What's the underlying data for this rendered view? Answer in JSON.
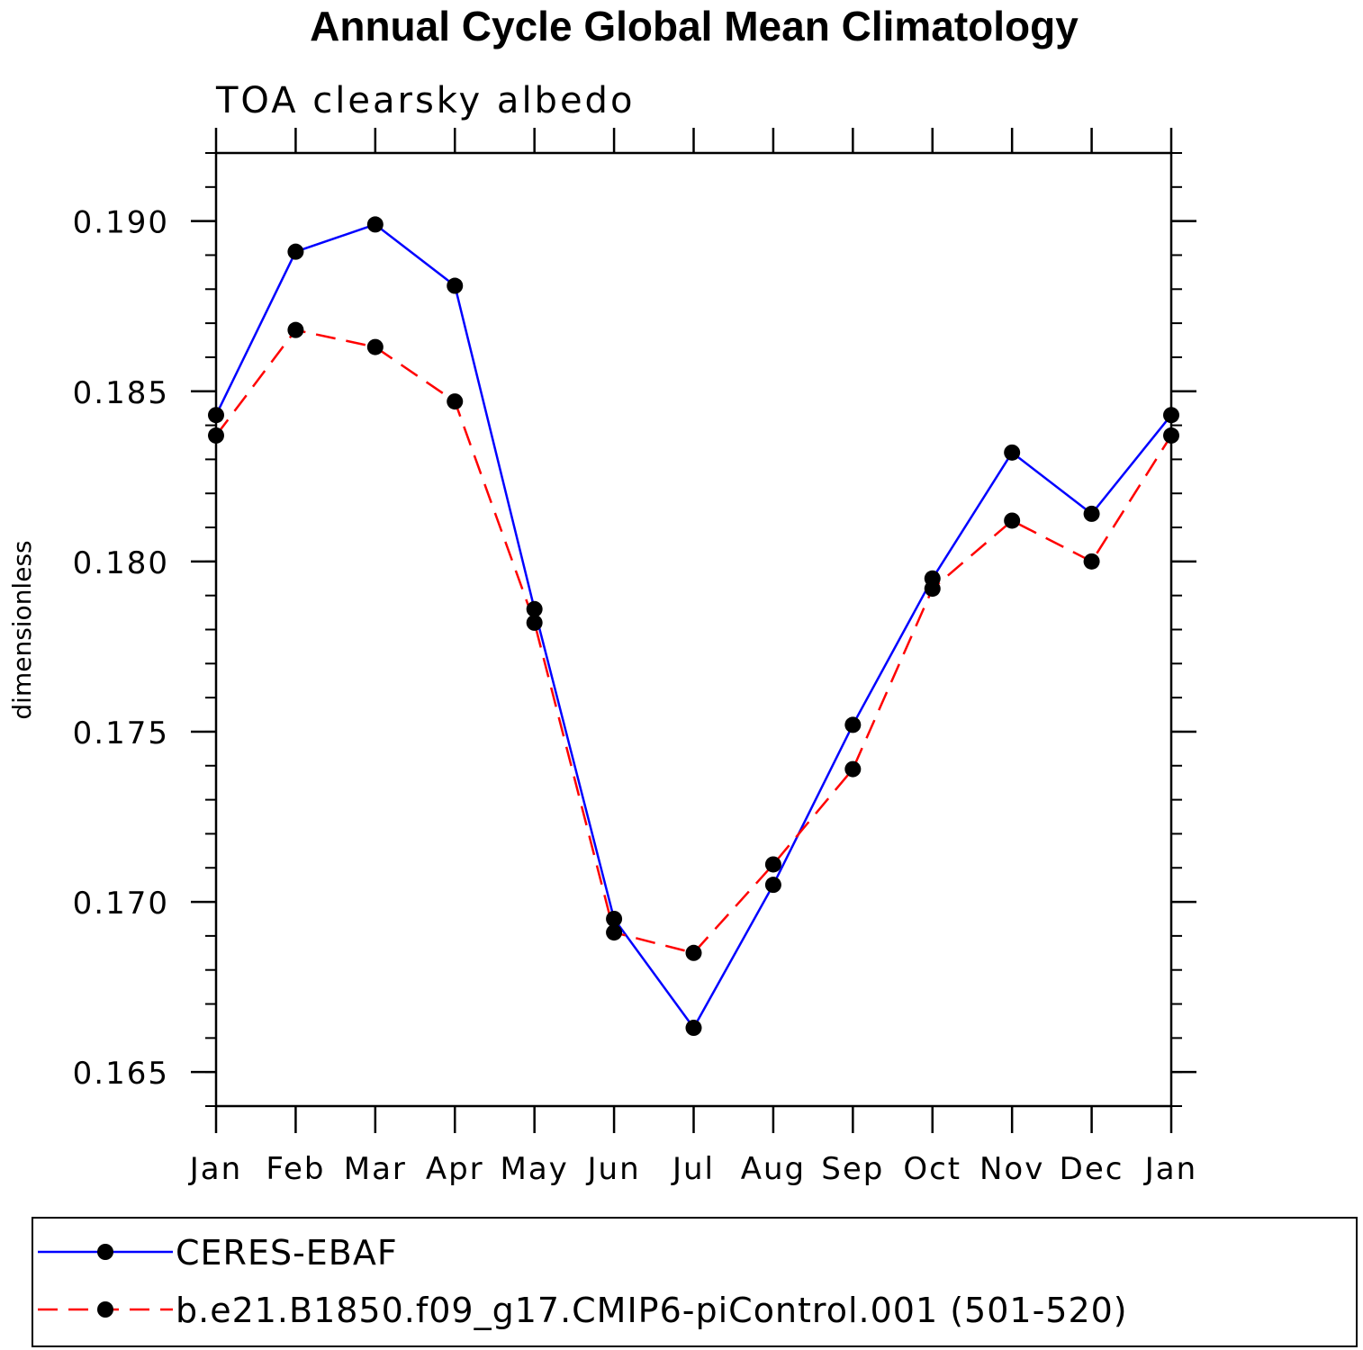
{
  "chart_data": {
    "type": "line",
    "title": "Annual Cycle Global Mean Climatology",
    "subtitle": "TOA clearsky albedo",
    "xlabel": "",
    "ylabel": "dimensionless",
    "categories": [
      "Jan",
      "Feb",
      "Mar",
      "Apr",
      "May",
      "Jun",
      "Jul",
      "Aug",
      "Sep",
      "Oct",
      "Nov",
      "Dec",
      "Jan"
    ],
    "ylim": [
      0.164,
      0.192
    ],
    "yticks": [
      0.165,
      0.17,
      0.175,
      0.18,
      0.185,
      0.19
    ],
    "ytick_labels": [
      "0.165",
      "0.170",
      "0.175",
      "0.180",
      "0.185",
      "0.190"
    ],
    "minor_step": 0.001,
    "grid": false,
    "legend_position": "bottom",
    "series": [
      {
        "name": "CERES-EBAF",
        "color": "#0000ff",
        "dash": "solid",
        "marker": "filled-circle",
        "values": [
          0.1843,
          0.1891,
          0.1899,
          0.1881,
          0.1786,
          0.1695,
          0.1663,
          0.1705,
          0.1752,
          0.1795,
          0.1832,
          0.1814,
          0.1843
        ]
      },
      {
        "name": "b.e21.B1850.f09_g17.CMIP6-piControl.001 (501-520)",
        "color": "#ff0000",
        "dash": "dashed",
        "marker": "filled-circle",
        "values": [
          0.1837,
          0.1868,
          0.1863,
          0.1847,
          0.1782,
          0.1691,
          0.1685,
          0.1711,
          0.1739,
          0.1792,
          0.1812,
          0.18,
          0.1837
        ]
      }
    ]
  }
}
